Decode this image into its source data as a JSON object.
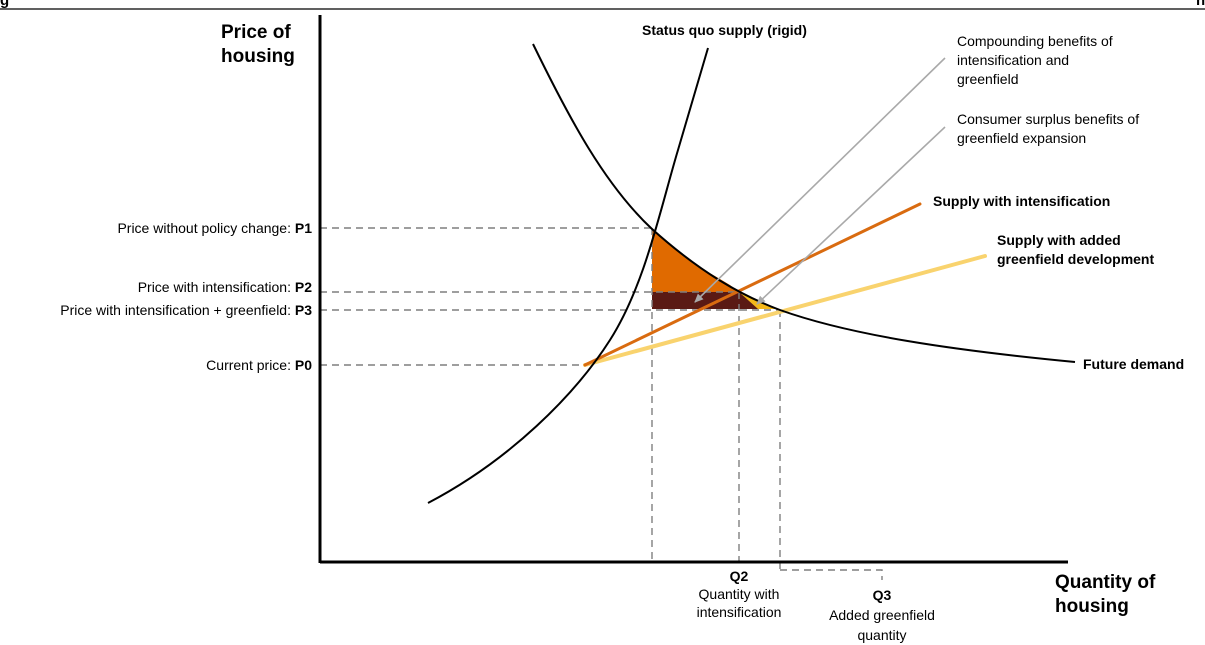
{
  "header_fragment": {
    "left": "g",
    "right": "h"
  },
  "axes": {
    "y_label_line1": "Price of",
    "y_label_line2": "housing",
    "x_label_line1": "Quantity of",
    "x_label_line2": "housing"
  },
  "curves": {
    "status_quo_supply": "Status quo supply (rigid)",
    "supply_intensification": "Supply with intensification",
    "supply_greenfield_line1": "Supply with added",
    "supply_greenfield_line2": "greenfield development",
    "future_demand": "Future demand"
  },
  "price_levels": {
    "p1_text": "Price without policy change: ",
    "p1_code": "P1",
    "p2_text": "Price with intensification: ",
    "p2_code": "P2",
    "p3_text": "Price with intensification + greenfield: ",
    "p3_code": "P3",
    "p0_text": "Current price: ",
    "p0_code": "P0"
  },
  "quantities": {
    "q2_code": "Q2",
    "q2_line1": "Quantity with",
    "q2_line2": "intensification",
    "q3_code": "Q3",
    "q3_line1": "Added greenfield",
    "q3_line2": "quantity"
  },
  "annotations": {
    "compounding_line1": "Compounding benefits of",
    "compounding_line2": "intensification and",
    "compounding_line3": "greenfield",
    "consumer_line1": "Consumer surplus benefits of",
    "consumer_line2": "greenfield expansion"
  },
  "colors": {
    "intensification_supply": "#d96b10",
    "greenfield_supply": "#f9d36e",
    "orange_area": "#e06a00",
    "dark_area": "#5a1a14",
    "yellow_area": "#f5b81a",
    "pointer_gray": "#a9a9a9",
    "guide_gray": "#7f7f7f"
  }
}
